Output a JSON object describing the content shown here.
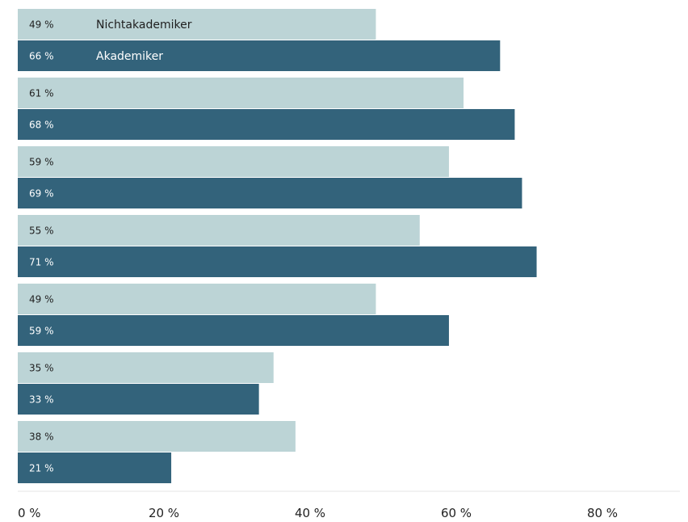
{
  "chart_data": {
    "type": "bar",
    "orientation": "horizontal",
    "title": "",
    "xlabel": "",
    "ylabel": "",
    "xlim": [
      0,
      80
    ],
    "grid": false,
    "legend": "inline-first-group",
    "categories": [
      "",
      "",
      "",
      "",
      "",
      "",
      ""
    ],
    "series": [
      {
        "name": "Nichtakademiker",
        "color": "#bcd4d6",
        "label_color": "#1f1f1f",
        "values": [
          49,
          61,
          59,
          55,
          49,
          35,
          38
        ],
        "labels": [
          "49 %",
          "61 %",
          "59 %",
          "55 %",
          "49 %",
          "35 %",
          "38 %"
        ]
      },
      {
        "name": "Akademiker",
        "color": "#33637b",
        "label_color": "#ffffff",
        "values": [
          66,
          68,
          69,
          71,
          59,
          33,
          21
        ],
        "labels": [
          "66 %",
          "68 %",
          "69 %",
          "71 %",
          "59 %",
          "33 %",
          "21 %"
        ]
      }
    ],
    "x_ticks": [
      {
        "value": 0,
        "label": "0 %"
      },
      {
        "value": 20,
        "label": "20 %"
      },
      {
        "value": 40,
        "label": "40 %"
      },
      {
        "value": 60,
        "label": "60 %"
      },
      {
        "value": 80,
        "label": "80 %"
      }
    ],
    "axis_color": "#e6e6e6"
  }
}
